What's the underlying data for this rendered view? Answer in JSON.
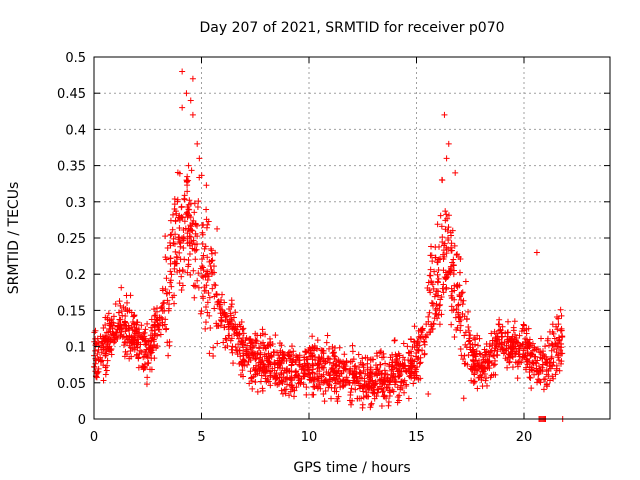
{
  "chart_data": {
    "type": "scatter",
    "title": "Day 207 of 2021, SRMTID for receiver p070",
    "xlabel": "GPS time / hours",
    "ylabel": "SRMTID / TECUs",
    "xlim": [
      0,
      24
    ],
    "ylim": [
      0,
      0.5
    ],
    "x_ticks": [
      0,
      5,
      10,
      15,
      20
    ],
    "x_tick_labels": [
      "0",
      "5",
      "10",
      "15",
      "20"
    ],
    "y_ticks": [
      0,
      0.05,
      0.1,
      0.15,
      0.2,
      0.25,
      0.3,
      0.35,
      0.4,
      0.45,
      0.5
    ],
    "y_tick_labels": [
      "0",
      "0.05",
      "0.1",
      "0.15",
      "0.2",
      "0.25",
      "0.3",
      "0.35",
      "0.4",
      "0.45",
      "0.5"
    ],
    "grid": true,
    "marker": "+",
    "marker_color": "#ff0000",
    "series": [
      {
        "name": "SRMTID",
        "baseline": {
          "x": [
            0.0,
            0.5,
            1.0,
            1.5,
            2.0,
            2.5,
            3.0,
            3.5,
            4.0,
            4.5,
            5.0,
            5.5,
            6.0,
            6.5,
            7.0,
            7.5,
            8.0,
            9.0,
            10.0,
            11.0,
            12.0,
            13.0,
            14.0,
            14.5,
            15.0,
            15.5,
            16.0,
            16.5,
            17.0,
            17.5,
            18.0,
            18.5,
            19.0,
            19.5,
            20.0,
            20.5,
            21.0,
            21.5,
            21.8
          ],
          "y": [
            0.09,
            0.095,
            0.13,
            0.13,
            0.11,
            0.09,
            0.13,
            0.19,
            0.25,
            0.28,
            0.24,
            0.18,
            0.14,
            0.12,
            0.09,
            0.085,
            0.08,
            0.07,
            0.07,
            0.065,
            0.055,
            0.055,
            0.06,
            0.07,
            0.08,
            0.12,
            0.2,
            0.22,
            0.16,
            0.09,
            0.07,
            0.09,
            0.11,
            0.1,
            0.1,
            0.08,
            0.07,
            0.1,
            0.11
          ]
        },
        "peaks": [
          {
            "x": 4.1,
            "y": 0.48
          },
          {
            "x": 4.6,
            "y": 0.47
          },
          {
            "x": 4.3,
            "y": 0.45
          },
          {
            "x": 4.5,
            "y": 0.44
          },
          {
            "x": 4.6,
            "y": 0.42
          },
          {
            "x": 4.1,
            "y": 0.43
          },
          {
            "x": 4.8,
            "y": 0.38
          },
          {
            "x": 4.9,
            "y": 0.36
          },
          {
            "x": 16.3,
            "y": 0.42
          },
          {
            "x": 16.5,
            "y": 0.38
          },
          {
            "x": 16.4,
            "y": 0.36
          },
          {
            "x": 16.2,
            "y": 0.33
          },
          {
            "x": 16.8,
            "y": 0.34
          },
          {
            "x": 20.6,
            "y": 0.23
          }
        ],
        "zero_markers_x": [
          20.7,
          20.75,
          20.8,
          20.85,
          20.9,
          20.95,
          21.0,
          21.8
        ]
      }
    ]
  }
}
